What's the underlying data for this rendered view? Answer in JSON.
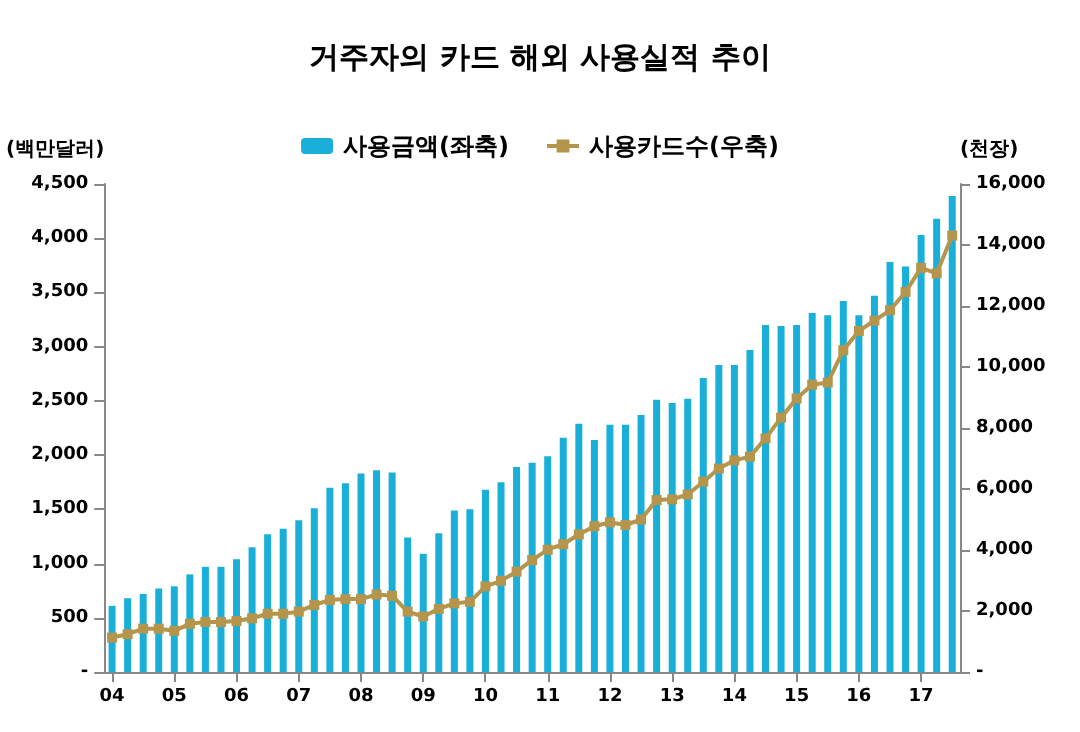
{
  "chart_data": {
    "type": "bar",
    "title": "거주자의 카드 해외 사용실적 추이",
    "ylabel": "(백만달러)",
    "y2label": "(천장)",
    "categories": [
      "04",
      null,
      null,
      null,
      "05",
      null,
      null,
      null,
      "06",
      null,
      null,
      null,
      "07",
      null,
      null,
      null,
      "08",
      null,
      null,
      null,
      "09",
      null,
      null,
      null,
      "10",
      null,
      null,
      null,
      "11",
      null,
      null,
      null,
      "12",
      null,
      null,
      null,
      "13",
      null,
      null,
      null,
      "14",
      null,
      null,
      null,
      "15",
      null,
      null,
      null,
      "16",
      null,
      null,
      null,
      "17",
      null,
      null
    ],
    "series": [
      {
        "name": "사용금액(좌축)",
        "color": "#1aafd9",
        "values": [
          610,
          680,
          720,
          770,
          790,
          900,
          970,
          970,
          1040,
          1150,
          1270,
          1320,
          1400,
          1510,
          1700,
          1740,
          1830,
          1860,
          1840,
          1240,
          1090,
          1280,
          1490,
          1500,
          1680,
          1750,
          1890,
          1930,
          1990,
          2160,
          2290,
          2140,
          2280,
          2280,
          2370,
          2510,
          2480,
          2520,
          2710,
          2830,
          2830,
          2970,
          3200,
          3190,
          3200,
          3310,
          3290,
          3420,
          3290,
          3470,
          3780,
          3740,
          4030,
          4180,
          4390
        ]
      },
      {
        "name": "사용카드수(우축)",
        "type": "line",
        "axis": "y2",
        "color": "#b5954b",
        "marker": "square",
        "values": [
          1130,
          1240,
          1420,
          1420,
          1350,
          1580,
          1640,
          1640,
          1670,
          1760,
          1910,
          1910,
          1980,
          2200,
          2360,
          2390,
          2390,
          2540,
          2500,
          1980,
          1820,
          2070,
          2250,
          2300,
          2810,
          2990,
          3290,
          3670,
          4010,
          4190,
          4510,
          4780,
          4910,
          4820,
          5000,
          5640,
          5660,
          5820,
          6240,
          6670,
          6940,
          7060,
          7660,
          8340,
          8970,
          9420,
          9490,
          10550,
          11180,
          11520,
          11860,
          12460,
          13250,
          13070,
          14310
        ]
      }
    ],
    "ylim": [
      0,
      4500
    ],
    "yticks": [
      {
        "value": 0,
        "label": "-"
      },
      500,
      {
        "value": 1000,
        "label": "1,000"
      },
      {
        "value": 1500,
        "label": "1,500"
      },
      {
        "value": 2000,
        "label": "2,000"
      },
      {
        "value": 2500,
        "label": "2,500"
      },
      {
        "value": 3000,
        "label": "3,000"
      },
      {
        "value": 3500,
        "label": "3,500"
      },
      {
        "value": 4000,
        "label": "4,000"
      },
      {
        "value": 4500,
        "label": "4,500"
      }
    ],
    "y2lim": [
      0,
      16000
    ],
    "y2ticks": [
      {
        "value": 0,
        "label": "-"
      },
      {
        "value": 2000,
        "label": "2,000"
      },
      {
        "value": 4000,
        "label": "4,000"
      },
      {
        "value": 6000,
        "label": "6,000"
      },
      {
        "value": 8000,
        "label": "8,000"
      },
      {
        "value": 10000,
        "label": "10,000"
      },
      {
        "value": 12000,
        "label": "12,000"
      },
      {
        "value": 14000,
        "label": "14,000"
      },
      {
        "value": 16000,
        "label": "16,000"
      }
    ],
    "legend": "top",
    "grid": false
  }
}
